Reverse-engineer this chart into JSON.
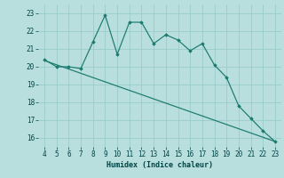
{
  "xlabel": "Humidex (Indice chaleur)",
  "x_data": [
    4,
    5,
    6,
    7,
    8,
    9,
    10,
    11,
    12,
    13,
    14,
    15,
    16,
    17,
    18,
    19,
    20,
    21,
    22,
    23
  ],
  "y_curve": [
    20.4,
    20.0,
    20.0,
    19.9,
    21.4,
    22.9,
    20.7,
    22.5,
    22.5,
    21.3,
    21.8,
    21.5,
    20.9,
    21.3,
    20.1,
    19.4,
    17.8,
    17.1,
    16.4,
    15.8
  ],
  "y_line_start": 20.35,
  "y_line_end": 15.8,
  "x_line_start": 4,
  "x_line_end": 23,
  "ylim": [
    15.5,
    23.5
  ],
  "xlim": [
    3.5,
    23.5
  ],
  "yticks": [
    16,
    17,
    18,
    19,
    20,
    21,
    22,
    23
  ],
  "xticks": [
    4,
    5,
    6,
    7,
    8,
    9,
    10,
    11,
    12,
    13,
    14,
    15,
    16,
    17,
    18,
    19,
    20,
    21,
    22,
    23
  ],
  "line_color": "#1a7a6e",
  "bg_color": "#b8dede",
  "grid_color": "#99cccc"
}
